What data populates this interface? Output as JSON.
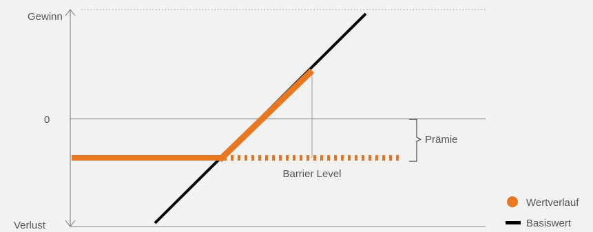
{
  "diagram": {
    "y_axis": {
      "top_label": "Gewinn",
      "zero_label": "0",
      "bottom_label": "Verlust"
    },
    "annotations": {
      "premium_label": "Prämie",
      "barrier_label": "Barrier Level"
    },
    "legend": [
      {
        "label": "Wertverlauf",
        "marker": "circle",
        "color": "#e87722"
      },
      {
        "label": "Basiswert",
        "marker": "line",
        "color": "#000000"
      }
    ],
    "colors": {
      "payoff": "#e87722",
      "underlying": "#000000",
      "axis": "#777777",
      "background": "#f2f2f2"
    }
  }
}
